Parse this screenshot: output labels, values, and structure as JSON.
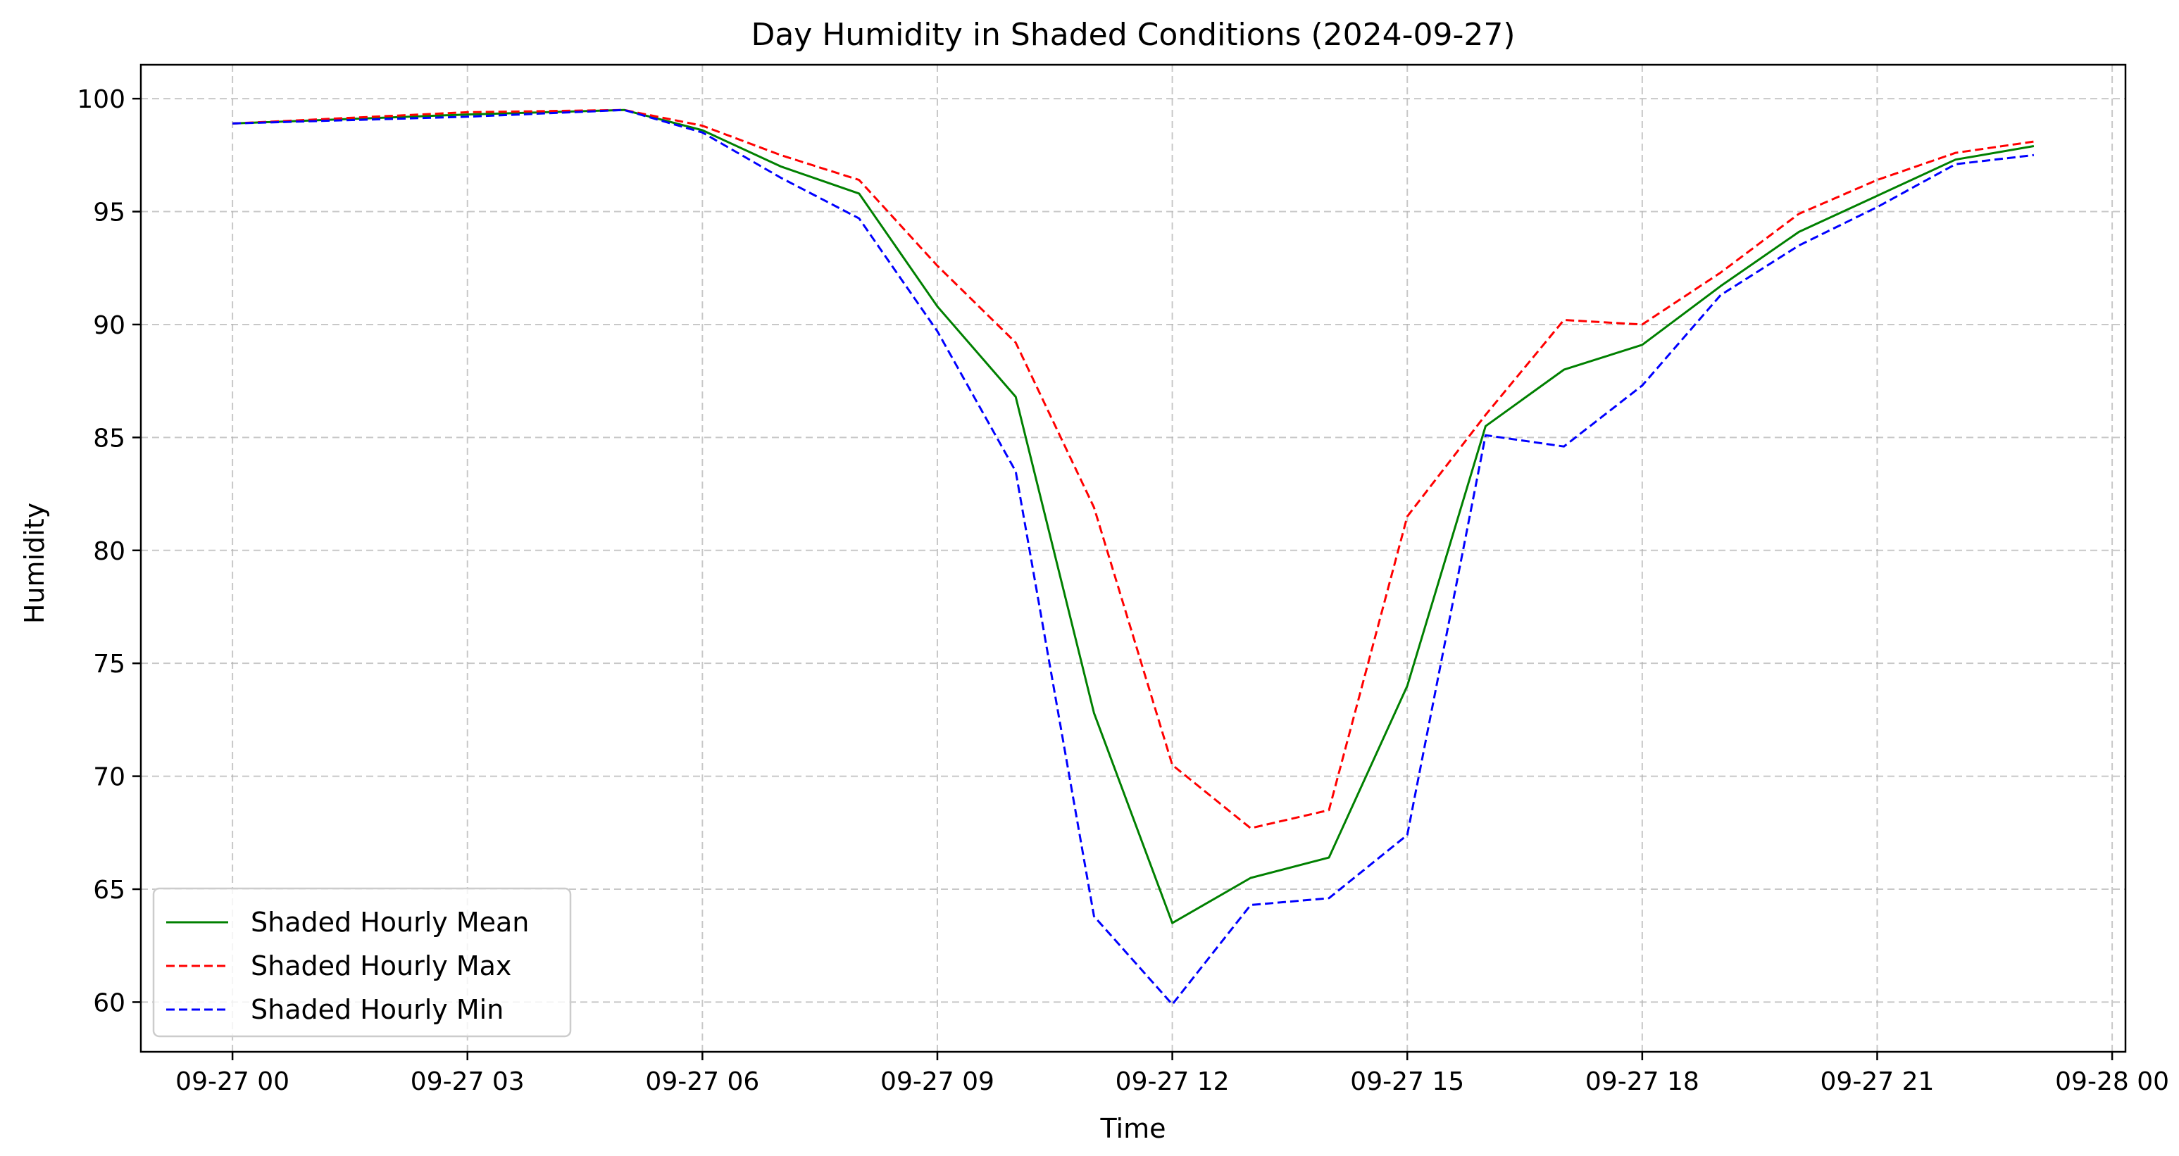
{
  "chart_data": {
    "type": "line",
    "title": "Day Humidity in Shaded Conditions (2024-09-27)",
    "xlabel": "Time",
    "ylabel": "Humidity",
    "x_tick_labels": [
      "09-27 00",
      "09-27 03",
      "09-27 06",
      "09-27 09",
      "09-27 12",
      "09-27 15",
      "09-27 18",
      "09-27 21",
      "09-28 00"
    ],
    "x_tick_hours": [
      0,
      3,
      6,
      9,
      12,
      15,
      18,
      21,
      24
    ],
    "xlim": [
      -1.17,
      24.17
    ],
    "y_ticks": [
      60,
      65,
      70,
      75,
      80,
      85,
      90,
      95,
      100
    ],
    "ylim": [
      57.8,
      101.5
    ],
    "grid": true,
    "legend_position": "lower-left",
    "x": [
      "2024-09-27 00:00",
      "2024-09-27 03:00",
      "2024-09-27 05:00",
      "2024-09-27 06:00",
      "2024-09-27 07:00",
      "2024-09-27 08:00",
      "2024-09-27 09:00",
      "2024-09-27 10:00",
      "2024-09-27 11:00",
      "2024-09-27 12:00",
      "2024-09-27 13:00",
      "2024-09-27 14:00",
      "2024-09-27 15:00",
      "2024-09-27 16:00",
      "2024-09-27 17:00",
      "2024-09-27 18:00",
      "2024-09-27 19:00",
      "2024-09-27 20:00",
      "2024-09-27 21:00",
      "2024-09-27 22:00",
      "2024-09-27 23:00"
    ],
    "x_hours": [
      0,
      3,
      5,
      6,
      7,
      8,
      9,
      10,
      11,
      12,
      13,
      14,
      15,
      16,
      17,
      18,
      19,
      20,
      21,
      22,
      23
    ],
    "series": [
      {
        "name": "Shaded Hourly Mean",
        "color": "#008000",
        "dash": "solid",
        "values": [
          98.9,
          99.3,
          99.5,
          98.6,
          97.0,
          95.8,
          90.8,
          86.8,
          72.8,
          63.5,
          65.5,
          66.4,
          74.0,
          85.5,
          88.0,
          89.1,
          91.7,
          94.1,
          95.7,
          97.3,
          97.9
        ]
      },
      {
        "name": "Shaded Hourly Max",
        "color": "#ff0000",
        "dash": "dashed",
        "values": [
          98.9,
          99.4,
          99.5,
          98.8,
          97.5,
          96.4,
          92.6,
          89.2,
          81.9,
          70.5,
          67.7,
          68.5,
          81.5,
          86.0,
          90.2,
          90.0,
          92.3,
          94.9,
          96.4,
          97.6,
          98.1
        ]
      },
      {
        "name": "Shaded Hourly Min",
        "color": "#0000ff",
        "dash": "dashed",
        "values": [
          98.9,
          99.2,
          99.5,
          98.5,
          96.5,
          94.7,
          89.7,
          83.5,
          63.8,
          59.9,
          64.3,
          64.6,
          67.4,
          85.1,
          84.6,
          87.3,
          91.3,
          93.5,
          95.2,
          97.1,
          97.5
        ]
      }
    ]
  }
}
